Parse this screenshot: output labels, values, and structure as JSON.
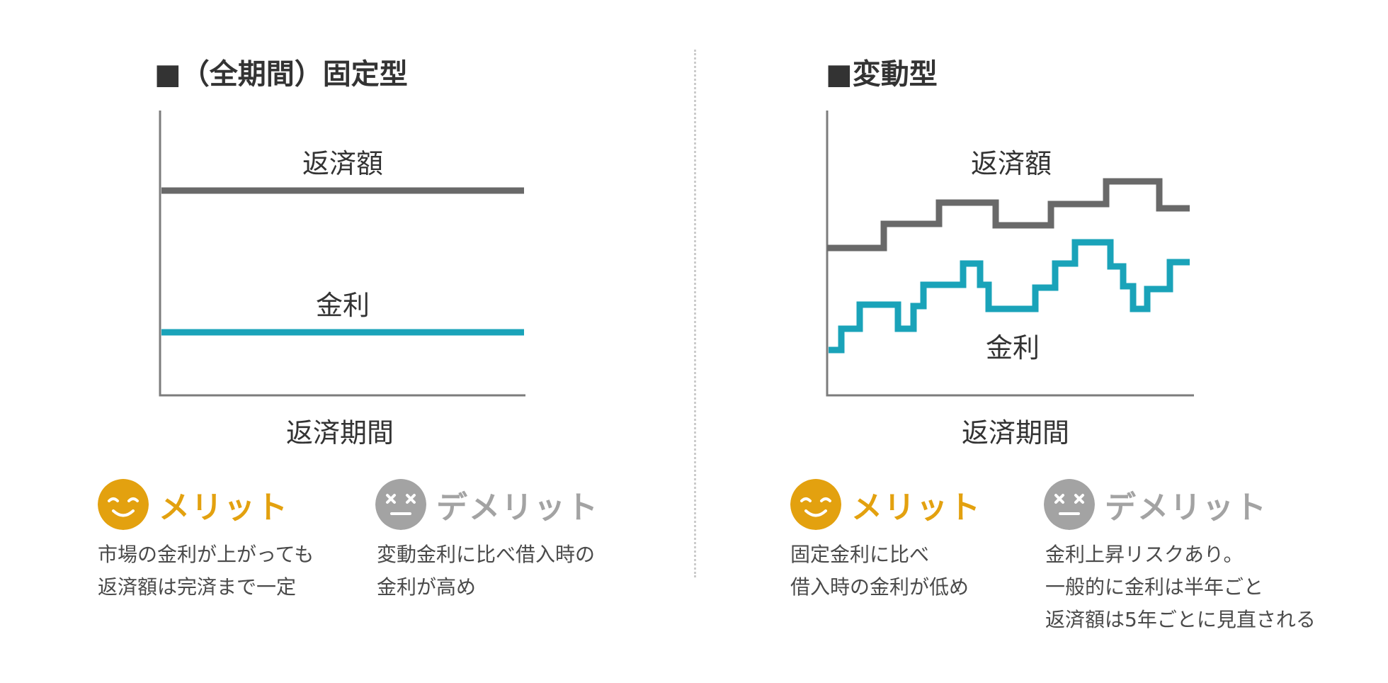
{
  "colors": {
    "repayment_line": "#696969",
    "interest_line": "#1aa3b9",
    "axis": "#7c7c7c",
    "merit": "#e3a10f",
    "demerit": "#a3a3a3",
    "divider": "#cccccc"
  },
  "icons": {
    "merit": "smiling-face-icon",
    "demerit": "dizzy-face-icon"
  },
  "fixed": {
    "title": "■（全期間）固定型",
    "repayment_label": "返済額",
    "interest_label": "金利",
    "x_label": "返済期間",
    "merit_label": "メリット",
    "merit_text": [
      "市場の金利が上がっても",
      "返済額は完済まで一定"
    ],
    "demerit_label": "デメリット",
    "demerit_text": [
      "変動金利に比べ借入時の",
      "金利が高め"
    ]
  },
  "variable": {
    "title": "■変動型",
    "repayment_label": "返済額",
    "interest_label": "金利",
    "x_label": "返済期間",
    "merit_label": "メリット",
    "merit_text": [
      "固定金利に比べ",
      "借入時の金利が低め"
    ],
    "demerit_label": "デメリット",
    "demerit_text": [
      "金利上昇リスクあり。",
      "一般的に金利は半年ごと",
      "返済額は5年ごとに見直される"
    ]
  }
}
